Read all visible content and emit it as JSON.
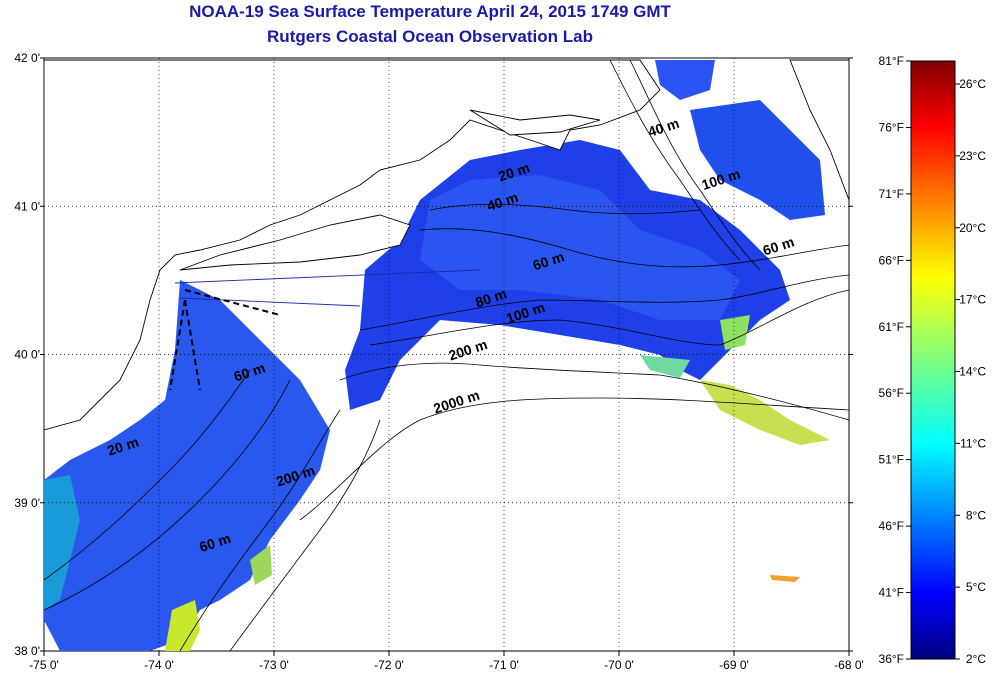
{
  "header": {
    "title": "NOAA-19 Sea Surface Temperature April 24, 2015 1749 GMT",
    "subtitle": "Rutgers Coastal Ocean Observation Lab"
  },
  "map": {
    "lon_ticks": [
      "-75 0'",
      "-74 0'",
      "-73 0'",
      "-72 0'",
      "-71 0'",
      "-70 0'",
      "-69 0'",
      "-68 0'"
    ],
    "lat_ticks": [
      "42 0'",
      "41 0'",
      "40 0'",
      "39 0'",
      "38 0'"
    ],
    "lon_range": [
      -75,
      -68
    ],
    "lat_range": [
      38,
      42
    ],
    "grid": "dotted",
    "contour_labels": [
      {
        "text": "20 m",
        "lon": -70.9,
        "lat": 41.2
      },
      {
        "text": "40 m",
        "lon": -71.0,
        "lat": 41.0
      },
      {
        "text": "60 m",
        "lon": -70.6,
        "lat": 40.6
      },
      {
        "text": "80 m",
        "lon": -71.1,
        "lat": 40.35
      },
      {
        "text": "100 m",
        "lon": -70.8,
        "lat": 40.25
      },
      {
        "text": "200 m",
        "lon": -71.3,
        "lat": 40.0
      },
      {
        "text": "2000 m",
        "lon": -71.4,
        "lat": 39.65
      },
      {
        "text": "40 m",
        "lon": -69.6,
        "lat": 41.5
      },
      {
        "text": "100 m",
        "lon": -69.1,
        "lat": 41.15
      },
      {
        "text": "60 m",
        "lon": -68.6,
        "lat": 40.7
      },
      {
        "text": "60 m",
        "lon": -73.2,
        "lat": 39.85
      },
      {
        "text": "20 m",
        "lon": -74.3,
        "lat": 39.35
      },
      {
        "text": "200 m",
        "lon": -72.8,
        "lat": 39.15
      },
      {
        "text": "60 m",
        "lon": -73.5,
        "lat": 38.7
      }
    ]
  },
  "colorbar": {
    "fahrenheit_labels": [
      "81°F",
      "76°F",
      "71°F",
      "66°F",
      "61°F",
      "56°F",
      "51°F",
      "46°F",
      "41°F",
      "36°F"
    ],
    "celsius_labels": [
      "26°C",
      "23°C",
      "20°C",
      "17°C",
      "14°C",
      "11°C",
      "8°C",
      "5°C",
      "2°C"
    ],
    "colormap": "jet",
    "colors": [
      "#00007f",
      "#0000ff",
      "#007fff",
      "#00ffff",
      "#7fff7f",
      "#ffff00",
      "#ff7f00",
      "#ff0000",
      "#7f0000"
    ]
  }
}
